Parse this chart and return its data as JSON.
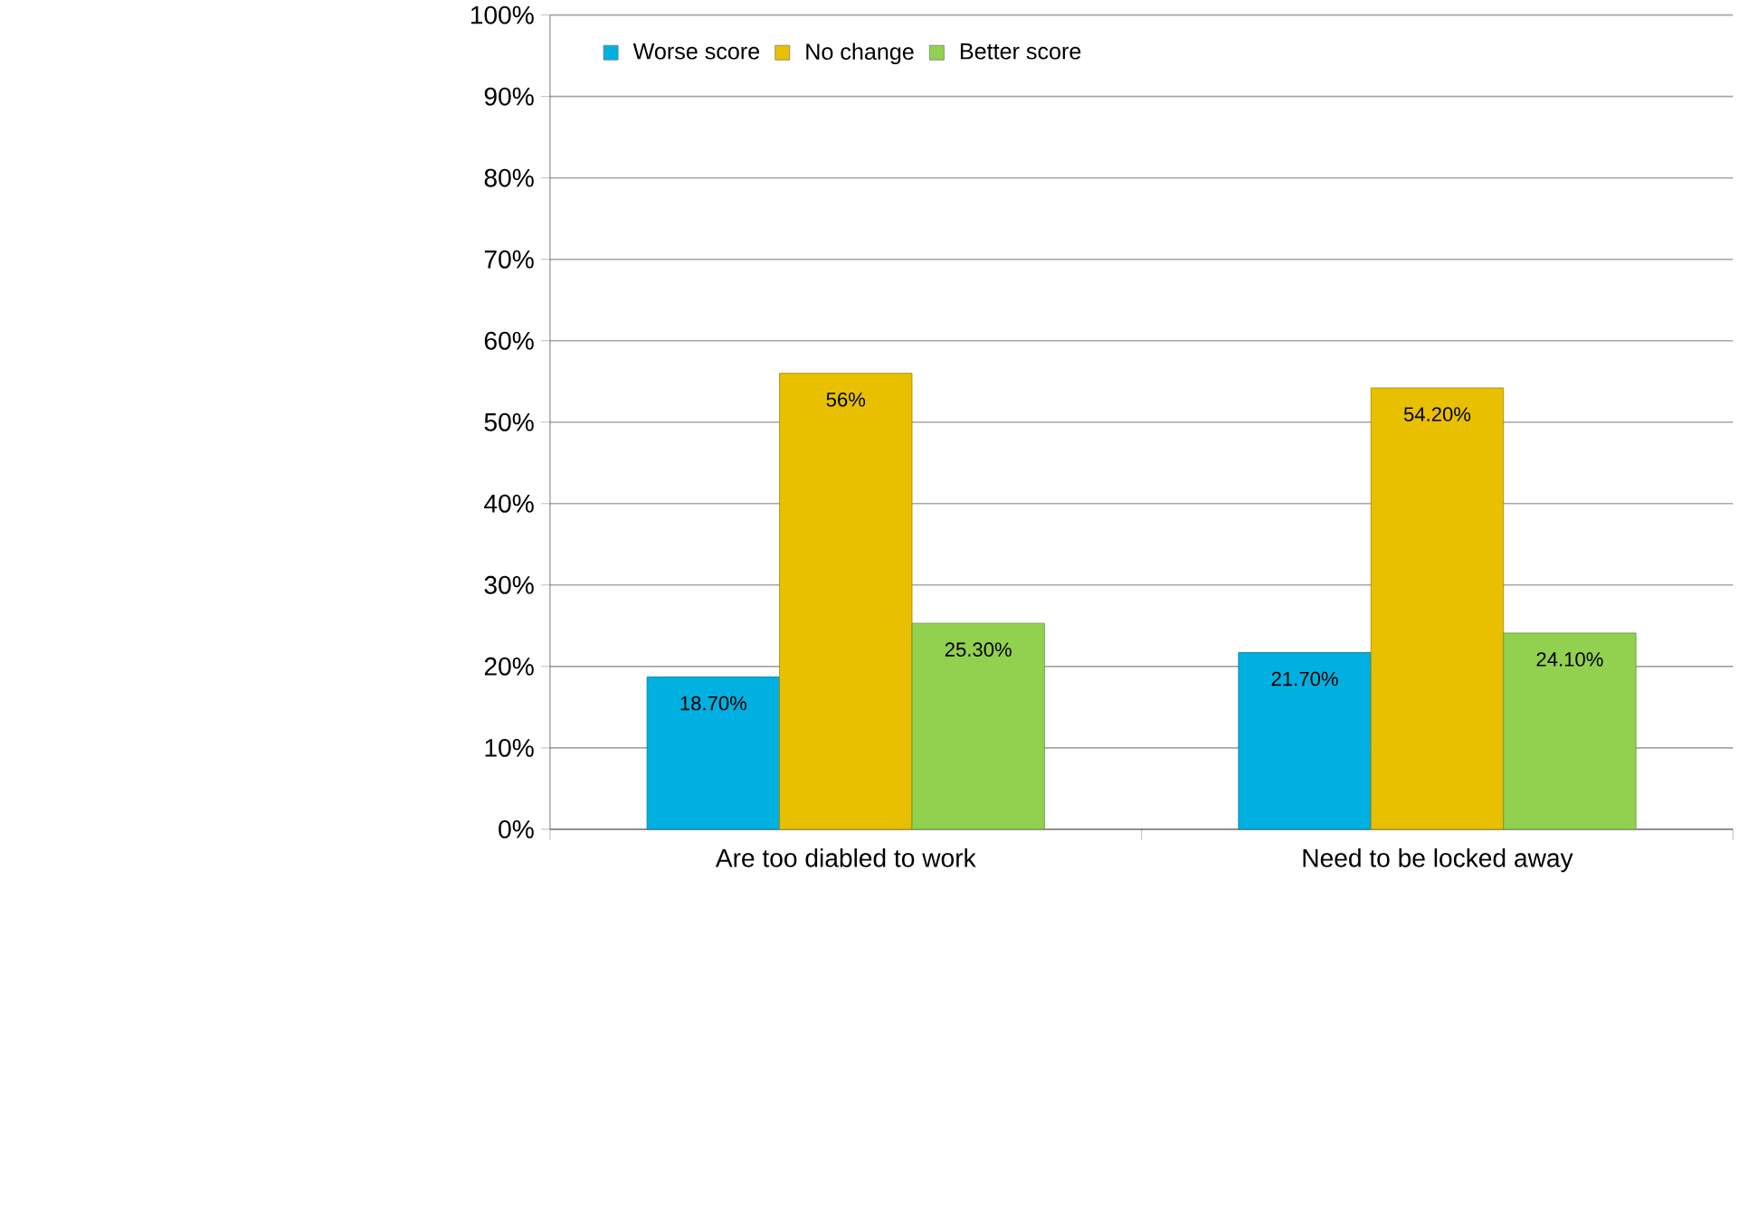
{
  "chart_data": {
    "type": "bar",
    "categories": [
      "Are too diabled to work",
      "Need to be locked away"
    ],
    "series": [
      {
        "name": "Worse score",
        "color": "#00b0e0",
        "values": [
          18.7,
          21.7
        ],
        "value_labels": [
          "18.70%",
          "21.70%"
        ]
      },
      {
        "name": "No change",
        "color": "#e8c000",
        "values": [
          56,
          54.2
        ],
        "value_labels": [
          "56%",
          "54.20%"
        ]
      },
      {
        "name": "Better score",
        "color": "#92d050",
        "values": [
          25.3,
          24.1
        ],
        "value_labels": [
          "25.30%",
          "24.10%"
        ]
      }
    ],
    "ylim": [
      0,
      100
    ],
    "yticks": [
      {
        "value": 0,
        "label": "0%"
      },
      {
        "value": 10,
        "label": "10%"
      },
      {
        "value": 20,
        "label": "20%"
      },
      {
        "value": 30,
        "label": "30%"
      },
      {
        "value": 40,
        "label": "40%"
      },
      {
        "value": 50,
        "label": "50%"
      },
      {
        "value": 60,
        "label": "60%"
      },
      {
        "value": 70,
        "label": "70%"
      },
      {
        "value": 80,
        "label": "80%"
      },
      {
        "value": 90,
        "label": "90%"
      },
      {
        "value": 100,
        "label": "100%"
      }
    ],
    "grid": "y",
    "legend": "top left"
  }
}
